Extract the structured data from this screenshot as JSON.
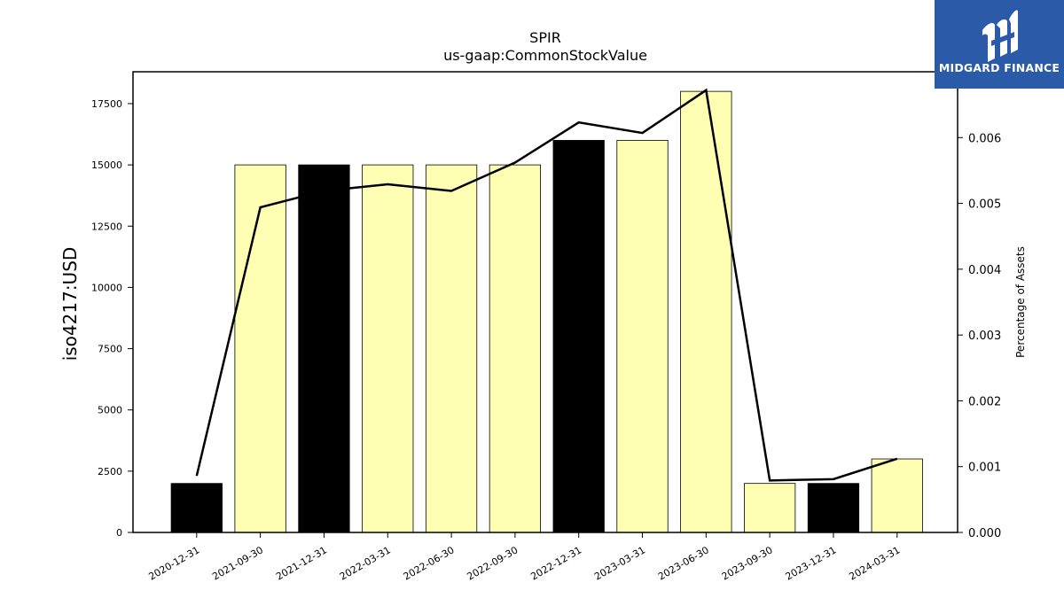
{
  "chart_data": {
    "type": "bar",
    "title": "SPIR",
    "subtitle": "us-gaap:CommonStockValue",
    "ylabel": "iso4217:USD",
    "y2label": "Percentage of Assets",
    "categories": [
      "2020-12-31",
      "2021-09-30",
      "2021-12-31",
      "2022-03-31",
      "2022-06-30",
      "2022-09-30",
      "2022-12-31",
      "2023-03-31",
      "2023-06-30",
      "2023-09-30",
      "2023-12-31",
      "2024-03-31"
    ],
    "series": [
      {
        "type": "bar",
        "values": [
          2000,
          15000,
          15000,
          15000,
          15000,
          15000,
          16000,
          16000,
          18000,
          2000,
          2000,
          3000
        ]
      },
      {
        "type": "line",
        "axis": "right",
        "values": [
          0.00086,
          0.00494,
          0.00519,
          0.00529,
          0.00519,
          0.00562,
          0.00623,
          0.00607,
          0.00672,
          0.00079,
          0.00081,
          0.00112
        ]
      }
    ],
    "bar_colors": [
      "#000000",
      "#ffffb3",
      "#000000",
      "#ffffb3",
      "#ffffb3",
      "#ffffb3",
      "#000000",
      "#ffffb3",
      "#ffffb3",
      "#ffffb3",
      "#000000",
      "#ffffb3"
    ],
    "ylim": [
      0,
      18800
    ],
    "y2lim": [
      0,
      0.007
    ],
    "yticks": [
      0,
      2500,
      5000,
      7500,
      10000,
      12500,
      15000,
      17500
    ],
    "y2ticks": [
      "0.000",
      "0.001",
      "0.002",
      "0.003",
      "0.004",
      "0.005",
      "0.006"
    ],
    "y2tick_values": [
      0,
      0.001,
      0.002,
      0.003,
      0.004,
      0.005,
      0.006
    ],
    "line_color": "#000000"
  },
  "logo": {
    "text": "MIDGARD FINANCE",
    "color": "#2b5aa8"
  }
}
